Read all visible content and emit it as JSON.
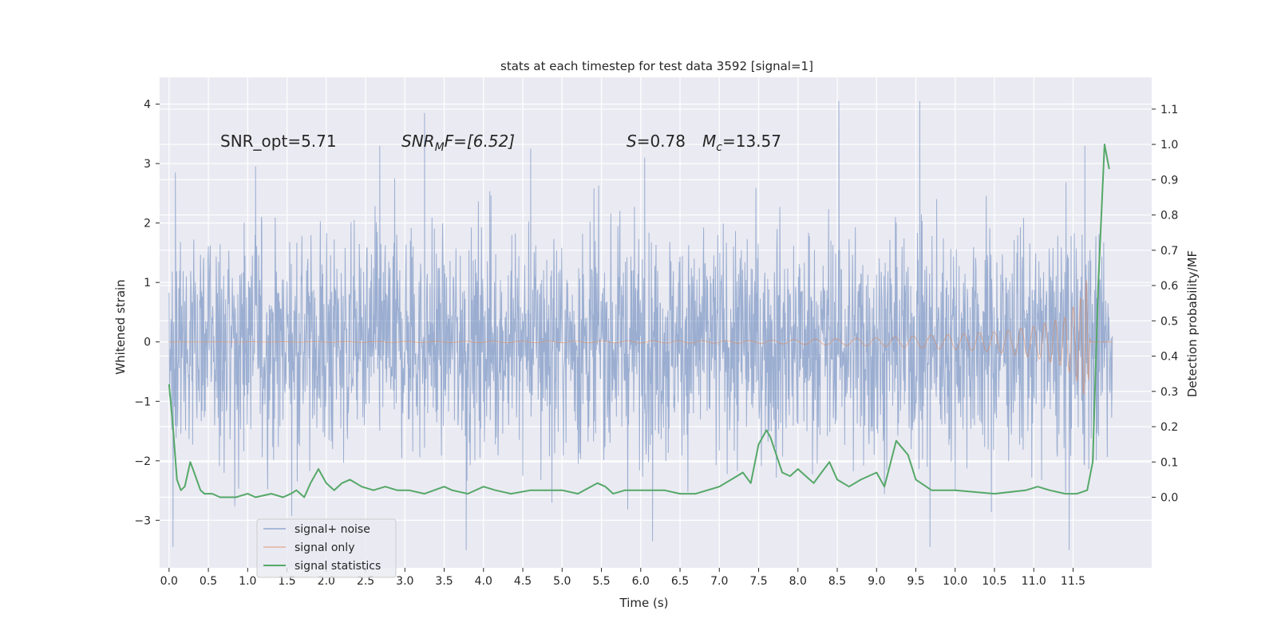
{
  "chart_data": {
    "type": "line",
    "title": "stats at each timestep for test data 3592 [signal=1]",
    "xlabel": "Time (s)",
    "ylabel": "Whitened strain",
    "ylabel_right": "Detection probability/MF",
    "xlim": [
      -0.12,
      12.5
    ],
    "ylim": [
      -3.8,
      4.45
    ],
    "ylim_right": [
      -0.2,
      1.19
    ],
    "x_ticks": [
      "0.0",
      "0.5",
      "1.0",
      "1.5",
      "2.0",
      "2.5",
      "3.0",
      "3.5",
      "4.0",
      "4.5",
      "5.0",
      "5.5",
      "6.0",
      "6.5",
      "7.0",
      "7.5",
      "8.0",
      "8.5",
      "9.0",
      "9.5",
      "10.0",
      "10.5",
      "11.0",
      "11.5"
    ],
    "y_ticks": [
      "−3",
      "−2",
      "−1",
      "0",
      "1",
      "2",
      "3",
      "4"
    ],
    "y_ticks_right": [
      "0.0",
      "0.1",
      "0.2",
      "0.3",
      "0.4",
      "0.5",
      "0.6",
      "0.7",
      "0.8",
      "0.9",
      "1.0",
      "1.1"
    ],
    "grid": true,
    "legend_position": "lower-left",
    "annotations": {
      "snr_opt": "SNR_opt=5.71",
      "snr_mf_main": "SNR",
      "snr_mf_sub": "M",
      "snr_mf_value": "F=[6.52]",
      "s_symbol": "S",
      "s_value": "=0.78",
      "mc_symbol": "M",
      "mc_sub": "c",
      "mc_value": "=13.57"
    },
    "series": [
      {
        "name": "signal+ noise",
        "axis": "left",
        "color": "#4c72b0",
        "style": "noisy strain, roughly between -2.5 and 2.5 with spikes to about ±4",
        "x_range": [
          0.0,
          12.0
        ],
        "peak_values": [
          {
            "x": 0.08,
            "y": 2.85
          },
          {
            "x": 1.1,
            "y": 2.95
          },
          {
            "x": 2.68,
            "y": 3.3
          },
          {
            "x": 3.25,
            "y": 3.85
          },
          {
            "x": 4.6,
            "y": 3.25
          },
          {
            "x": 6.05,
            "y": 3.1
          },
          {
            "x": 8.52,
            "y": 4.05
          },
          {
            "x": 9.55,
            "y": 4.05
          },
          {
            "x": 11.65,
            "y": 3.3
          },
          {
            "x": 0.05,
            "y": -3.45
          },
          {
            "x": 3.78,
            "y": -3.5
          },
          {
            "x": 6.15,
            "y": -3.35
          },
          {
            "x": 9.68,
            "y": -3.45
          },
          {
            "x": 11.45,
            "y": -3.5
          }
        ]
      },
      {
        "name": "signal only",
        "axis": "left",
        "color": "#dd8452",
        "style": "chirp, flat at 0 then growing amplitude from about 7.5 s, peak near 11.7 s",
        "envelope": [
          {
            "x": 0.0,
            "amp": 0.0
          },
          {
            "x": 7.5,
            "amp": 0.02
          },
          {
            "x": 8.0,
            "amp": 0.04
          },
          {
            "x": 9.0,
            "amp": 0.07
          },
          {
            "x": 10.0,
            "amp": 0.13
          },
          {
            "x": 10.5,
            "amp": 0.17
          },
          {
            "x": 11.0,
            "amp": 0.26
          },
          {
            "x": 11.4,
            "amp": 0.42
          },
          {
            "x": 11.6,
            "amp": 0.75
          },
          {
            "x": 11.68,
            "amp": 1.1
          },
          {
            "x": 11.72,
            "amp": 0.0
          },
          {
            "x": 12.0,
            "amp": 0.0
          }
        ]
      },
      {
        "name": "signal statistics",
        "axis": "right",
        "color": "#55a868",
        "x": [
          0.0,
          0.05,
          0.1,
          0.15,
          0.2,
          0.27,
          0.32,
          0.4,
          0.45,
          0.55,
          0.65,
          0.75,
          0.85,
          1.0,
          1.1,
          1.3,
          1.45,
          1.55,
          1.62,
          1.72,
          1.8,
          1.9,
          2.0,
          2.05,
          2.1,
          2.2,
          2.3,
          2.45,
          2.6,
          2.75,
          2.9,
          3.05,
          3.25,
          3.5,
          3.6,
          3.8,
          4.0,
          4.15,
          4.35,
          4.6,
          4.8,
          5.0,
          5.2,
          5.45,
          5.55,
          5.65,
          5.8,
          6.0,
          6.3,
          6.5,
          6.7,
          7.0,
          7.15,
          7.3,
          7.4,
          7.5,
          7.6,
          7.65,
          7.8,
          7.9,
          8.0,
          8.1,
          8.2,
          8.3,
          8.4,
          8.5,
          8.65,
          8.8,
          9.0,
          9.1,
          9.25,
          9.4,
          9.5,
          9.7,
          10.0,
          10.5,
          10.9,
          11.05,
          11.2,
          11.4,
          11.55,
          11.68,
          11.75,
          11.82,
          11.9,
          11.96
        ],
        "y": [
          0.32,
          0.2,
          0.05,
          0.02,
          0.03,
          0.1,
          0.07,
          0.02,
          0.01,
          0.01,
          0.0,
          0.0,
          0.0,
          0.01,
          0.0,
          0.01,
          0.0,
          0.01,
          0.02,
          0.0,
          0.04,
          0.08,
          0.04,
          0.03,
          0.02,
          0.04,
          0.05,
          0.03,
          0.02,
          0.03,
          0.02,
          0.02,
          0.01,
          0.03,
          0.02,
          0.01,
          0.03,
          0.02,
          0.01,
          0.02,
          0.02,
          0.02,
          0.01,
          0.04,
          0.03,
          0.01,
          0.02,
          0.02,
          0.02,
          0.01,
          0.01,
          0.03,
          0.05,
          0.07,
          0.04,
          0.15,
          0.19,
          0.17,
          0.07,
          0.06,
          0.08,
          0.06,
          0.04,
          0.07,
          0.1,
          0.05,
          0.03,
          0.05,
          0.07,
          0.03,
          0.16,
          0.12,
          0.05,
          0.02,
          0.02,
          0.01,
          0.02,
          0.03,
          0.02,
          0.01,
          0.01,
          0.02,
          0.1,
          0.6,
          1.0,
          0.93
        ]
      }
    ]
  }
}
